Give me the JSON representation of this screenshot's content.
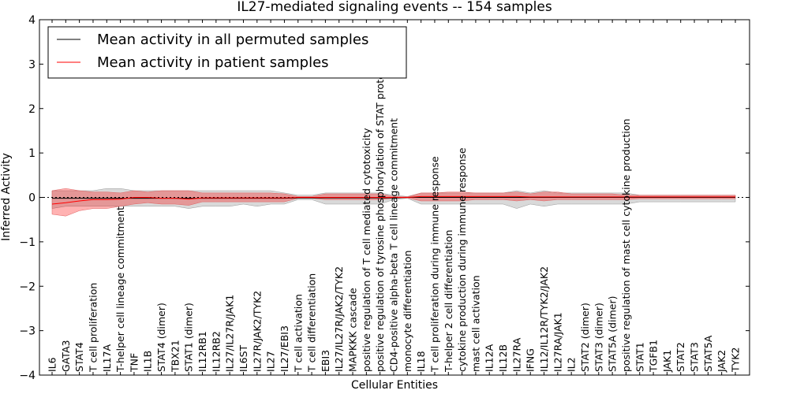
{
  "chart_data": {
    "type": "line",
    "title": "IL27-mediated signaling events -- 154 samples",
    "xlabel": "Cellular Entities",
    "ylabel": "Inferred Activity",
    "ylim": [
      -4,
      4
    ],
    "yticks": [
      -4,
      -3,
      -2,
      -1,
      0,
      1,
      2,
      3,
      4
    ],
    "ytick_labels": [
      "−4",
      "−3",
      "−2",
      "−1",
      "0",
      "1",
      "2",
      "3",
      "4"
    ],
    "categories": [
      "IL6",
      "GATA3",
      "STAT4",
      "T cell proliferation",
      "IL17A",
      "T-helper cell lineage commitment",
      "TNF",
      "IL1B",
      "STAT4 (dimer)",
      "TBX21",
      "STAT1 (dimer)",
      "IL12RB1",
      "IL12RB2",
      "IL27/IL27R/JAK1",
      "IL6ST",
      "IL27R/JAK2/TYK2",
      "IL27",
      "IL27/EBI3",
      "T cell activation",
      "T cell differentiation",
      "EBI3",
      "IL27/IL27R/JAK2/TYK2",
      "MAPKKK cascade",
      "positive regulation of T cell mediated cytotoxicity",
      "positive regulation of tyrosine phosphorylation of STAT protein",
      "CD4-positive alpha-beta T cell lineage commitment",
      "monocyte differentiation",
      "IL18",
      "T cell proliferation during immune response",
      "T-helper 2 cell differentiation",
      "cytokine production during immune response",
      "mast cell activation",
      "IL12A",
      "IL12B",
      "IL27RA",
      "IFNG",
      "IL12/IL12R/TYK2/JAK2",
      "IL27RA/JAK1",
      "IL2",
      "STAT2 (dimer)",
      "STAT3 (dimer)",
      "STAT5A (dimer)",
      "positive regulation of mast cell cytokine production",
      "STAT1",
      "TGFB1",
      "JAK1",
      "STAT2",
      "STAT3",
      "STAT5A",
      "JAK2",
      "TYK2"
    ],
    "series": [
      {
        "name": "Mean activity in all permuted samples",
        "color": "#000000",
        "values": [
          -0.02,
          -0.02,
          -0.02,
          -0.02,
          -0.02,
          -0.02,
          -0.02,
          -0.02,
          -0.02,
          -0.02,
          -0.02,
          -0.02,
          -0.02,
          -0.02,
          -0.02,
          -0.02,
          -0.02,
          -0.02,
          -0.01,
          -0.01,
          -0.01,
          -0.01,
          -0.01,
          -0.01,
          -0.01,
          -0.01,
          0.0,
          0.0,
          0.0,
          0.0,
          0.0,
          0.0,
          0.0,
          0.0,
          0.0,
          0.0,
          0.0,
          0.0,
          0.0,
          0.0,
          0.0,
          0.0,
          0.0,
          0.0,
          0.0,
          0.0,
          0.0,
          0.0,
          0.0,
          0.0,
          0.0
        ],
        "band_low": [
          -0.25,
          -0.2,
          -0.2,
          -0.2,
          -0.2,
          -0.2,
          -0.2,
          -0.2,
          -0.2,
          -0.2,
          -0.25,
          -0.2,
          -0.2,
          -0.2,
          -0.15,
          -0.2,
          -0.15,
          -0.15,
          -0.05,
          -0.05,
          -0.15,
          -0.15,
          -0.15,
          -0.15,
          -0.15,
          -0.05,
          -0.02,
          -0.15,
          -0.15,
          -0.15,
          -0.15,
          -0.15,
          -0.15,
          -0.15,
          -0.25,
          -0.15,
          -0.2,
          -0.15,
          -0.15,
          -0.15,
          -0.15,
          -0.15,
          -0.15,
          -0.1,
          -0.1,
          -0.1,
          -0.1,
          -0.1,
          -0.1,
          -0.1,
          -0.1
        ],
        "band_high": [
          0.15,
          0.15,
          0.15,
          0.15,
          0.2,
          0.2,
          0.15,
          0.15,
          0.15,
          0.15,
          0.15,
          0.15,
          0.15,
          0.15,
          0.15,
          0.15,
          0.15,
          0.1,
          0.05,
          0.05,
          0.1,
          0.1,
          0.1,
          0.1,
          0.1,
          0.05,
          0.02,
          0.1,
          0.1,
          0.1,
          0.1,
          0.1,
          0.1,
          0.1,
          0.15,
          0.1,
          0.15,
          0.1,
          0.1,
          0.1,
          0.1,
          0.1,
          0.1,
          0.05,
          0.05,
          0.05,
          0.05,
          0.05,
          0.05,
          0.05,
          0.05
        ]
      },
      {
        "name": "Mean activity in patient samples",
        "color": "#ff0000",
        "values": [
          -0.15,
          -0.12,
          -0.08,
          -0.05,
          -0.05,
          -0.04,
          0.0,
          0.0,
          -0.02,
          -0.02,
          -0.04,
          -0.01,
          -0.01,
          -0.01,
          -0.01,
          -0.01,
          -0.01,
          -0.01,
          0.0,
          0.0,
          0.0,
          0.0,
          0.0,
          0.0,
          0.0,
          0.0,
          0.0,
          0.02,
          0.02,
          0.02,
          0.02,
          0.02,
          0.02,
          0.02,
          0.02,
          0.01,
          0.01,
          0.01,
          0.01,
          0.01,
          0.01,
          0.01,
          0.01,
          0.01,
          0.01,
          0.01,
          0.01,
          0.01,
          0.01,
          0.01,
          0.01
        ],
        "band_low": [
          -0.38,
          -0.42,
          -0.3,
          -0.25,
          -0.25,
          -0.2,
          -0.15,
          -0.12,
          -0.15,
          -0.15,
          -0.18,
          -0.1,
          -0.1,
          -0.1,
          -0.1,
          -0.1,
          -0.1,
          -0.1,
          -0.02,
          -0.02,
          -0.05,
          -0.05,
          -0.05,
          -0.05,
          -0.05,
          -0.02,
          -0.01,
          -0.08,
          -0.08,
          -0.08,
          -0.08,
          -0.05,
          -0.05,
          -0.05,
          -0.08,
          -0.05,
          -0.08,
          -0.05,
          -0.05,
          -0.05,
          -0.05,
          -0.05,
          -0.05,
          -0.03,
          -0.03,
          -0.03,
          -0.03,
          -0.03,
          -0.03,
          -0.03,
          -0.03
        ],
        "band_high": [
          0.15,
          0.2,
          0.15,
          0.12,
          0.12,
          0.1,
          0.15,
          0.12,
          0.15,
          0.15,
          0.15,
          0.1,
          0.1,
          0.1,
          0.1,
          0.1,
          0.1,
          0.08,
          0.02,
          0.02,
          0.08,
          0.08,
          0.08,
          0.08,
          0.08,
          0.02,
          0.01,
          0.1,
          0.1,
          0.12,
          0.12,
          0.1,
          0.1,
          0.1,
          0.12,
          0.08,
          0.12,
          0.12,
          0.08,
          0.08,
          0.08,
          0.08,
          0.05,
          0.05,
          0.05,
          0.05,
          0.05,
          0.05,
          0.05,
          0.05,
          0.05
        ]
      }
    ],
    "legend": {
      "placement": "top-left",
      "entries": [
        "Mean activity in all permuted samples",
        "Mean activity in patient samples"
      ]
    },
    "grid": false,
    "band_colors": {
      "permuted": "#b4b4b4",
      "patient": "#ff0000"
    },
    "zero_line_style": "dotted"
  }
}
